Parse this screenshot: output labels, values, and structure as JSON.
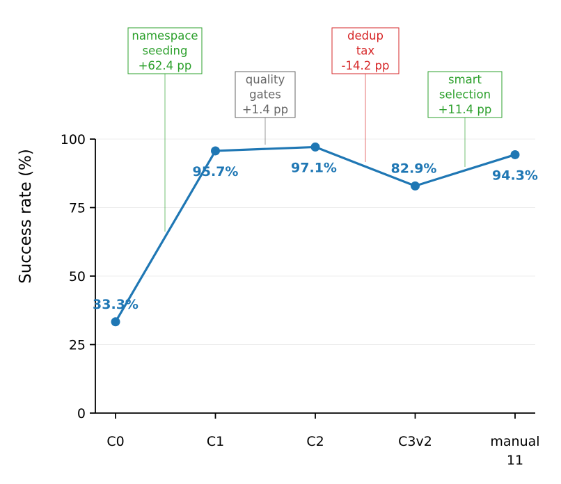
{
  "chart_data": {
    "type": "line",
    "title": "",
    "xlabel": "",
    "ylabel": "Success rate (%)",
    "ylim": [
      0,
      100
    ],
    "yticks": [
      0,
      25,
      50,
      75,
      100
    ],
    "grid": "horizontal",
    "categories": [
      "C0",
      "C1",
      "C2",
      "C3v2",
      "manual 11"
    ],
    "category_lines": [
      [
        "C0"
      ],
      [
        "C1"
      ],
      [
        "C2"
      ],
      [
        "C3v2"
      ],
      [
        "manual",
        "11"
      ]
    ],
    "series": [
      {
        "color": "#1f77b4",
        "values": [
          33.3,
          95.7,
          97.1,
          82.9,
          94.3
        ],
        "labels": [
          "33.3%",
          "95.7%",
          "97.1%",
          "82.9%",
          "94.3%"
        ]
      }
    ],
    "annotations": [
      {
        "between": [
          "C0",
          "C1"
        ],
        "lines": [
          "namespace",
          "seeding",
          "+62.4 pp"
        ],
        "color": "#2ca02c"
      },
      {
        "between": [
          "C1",
          "C2"
        ],
        "lines": [
          "quality",
          "gates",
          "+1.4 pp"
        ],
        "color": "#666666"
      },
      {
        "between": [
          "C2",
          "C3v2"
        ],
        "lines": [
          "dedup",
          "tax",
          "-14.2 pp"
        ],
        "color": "#d62728"
      },
      {
        "between": [
          "C3v2",
          "manual 11"
        ],
        "lines": [
          "smart",
          "selection",
          "+11.4 pp"
        ],
        "color": "#2ca02c"
      }
    ]
  }
}
